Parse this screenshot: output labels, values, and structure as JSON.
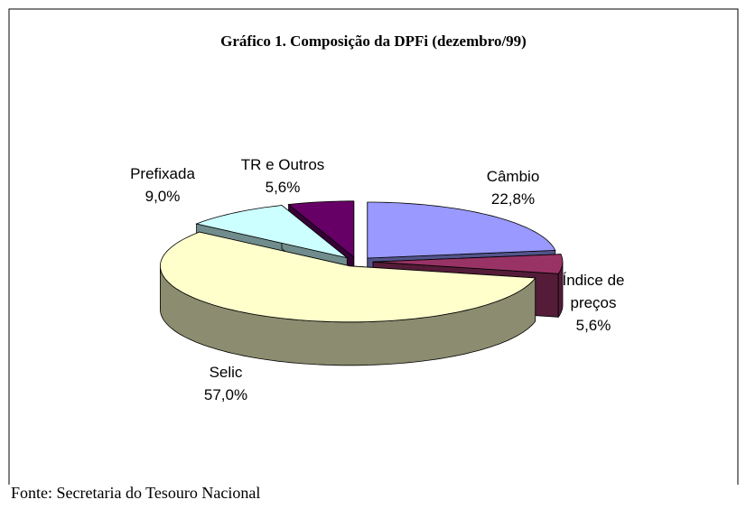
{
  "chart_data": {
    "type": "pie",
    "title": "Gráfico 1. Composição da DPFi (dezembro/99)",
    "categories": [
      "Câmbio",
      "Índice de preços",
      "Selic",
      "Prefixada",
      "TR e Outros"
    ],
    "values": [
      22.8,
      5.6,
      57.0,
      9.0,
      5.6
    ],
    "value_labels": [
      "22,8%",
      "5,6%",
      "57,0%",
      "9,0%",
      "5,6%"
    ],
    "colors": [
      "#9999ff",
      "#993366",
      "#ffffcc",
      "#ccffff",
      "#660066"
    ]
  },
  "source": "Fonte: Secretaria do Tesouro Nacional"
}
